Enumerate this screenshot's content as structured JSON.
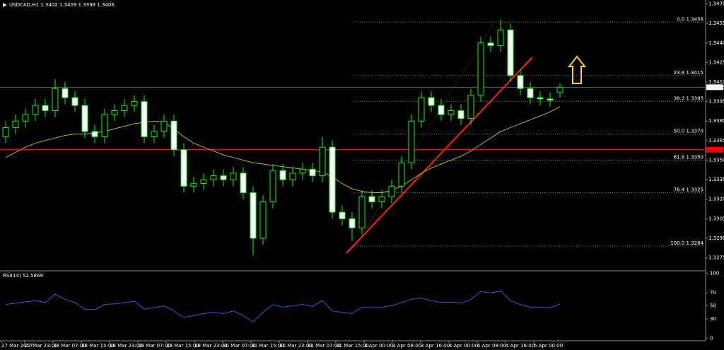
{
  "chart_data": {
    "type": "candlestick",
    "title": "USDCAD,H1 1.3402 1.3409 1.3398 1.3406",
    "open": [
      1.3368,
      1.3375,
      1.338,
      1.3385,
      1.3392,
      1.3388,
      1.3405,
      1.3398,
      1.3392,
      1.3372,
      1.3368,
      1.3385,
      1.3388,
      1.3392,
      1.3395,
      1.3368,
      1.3372,
      1.338,
      1.3358,
      1.333,
      1.3332,
      1.3335,
      1.3338,
      1.3335,
      1.334,
      1.3325,
      1.329,
      1.3318,
      1.3342,
      1.3335,
      1.334,
      1.3343,
      1.3338,
      1.336,
      1.331,
      1.3305,
      1.3298,
      1.3322,
      1.3318,
      1.3322,
      1.333,
      1.3348,
      1.338,
      1.3398,
      1.3392,
      1.3385,
      1.3388,
      1.3382,
      1.34,
      1.344,
      1.3438,
      1.345,
      1.3415,
      1.3405,
      1.3398,
      1.3397,
      1.3402
    ],
    "high": [
      1.338,
      1.3385,
      1.339,
      1.3397,
      1.3397,
      1.3412,
      1.341,
      1.3403,
      1.3397,
      1.3377,
      1.339,
      1.3393,
      1.3397,
      1.34,
      1.34,
      1.3377,
      1.3385,
      1.3385,
      1.3363,
      1.3337,
      1.334,
      1.3343,
      1.3343,
      1.3345,
      1.3345,
      1.333,
      1.3323,
      1.3347,
      1.3347,
      1.3345,
      1.3348,
      1.3348,
      1.3368,
      1.3365,
      1.3315,
      1.331,
      1.3327,
      1.3327,
      1.3327,
      1.3335,
      1.3353,
      1.3385,
      1.3403,
      1.3403,
      1.3397,
      1.3393,
      1.3393,
      1.3405,
      1.3445,
      1.3445,
      1.3458,
      1.3455,
      1.342,
      1.341,
      1.3403,
      1.3402,
      1.3409
    ],
    "low": [
      1.3363,
      1.337,
      1.3375,
      1.338,
      1.3383,
      1.3383,
      1.3393,
      1.3387,
      1.3367,
      1.3363,
      1.3363,
      1.338,
      1.3383,
      1.3387,
      1.3363,
      1.3363,
      1.3367,
      1.3353,
      1.3325,
      1.3325,
      1.3327,
      1.333,
      1.333,
      1.333,
      1.332,
      1.3277,
      1.3285,
      1.3313,
      1.333,
      1.333,
      1.3335,
      1.3333,
      1.3333,
      1.3305,
      1.33,
      1.3288,
      1.3293,
      1.3313,
      1.3313,
      1.3317,
      1.3325,
      1.3343,
      1.3375,
      1.3387,
      1.338,
      1.338,
      1.3377,
      1.3377,
      1.3395,
      1.3433,
      1.3433,
      1.341,
      1.34,
      1.3393,
      1.3392,
      1.3391,
      1.3398
    ],
    "close": [
      1.3375,
      1.338,
      1.3385,
      1.3392,
      1.3388,
      1.3405,
      1.3398,
      1.3392,
      1.3372,
      1.3368,
      1.3385,
      1.3388,
      1.3392,
      1.3395,
      1.3368,
      1.3372,
      1.338,
      1.3358,
      1.333,
      1.3332,
      1.3335,
      1.3338,
      1.3335,
      1.334,
      1.3325,
      1.329,
      1.3318,
      1.3342,
      1.3335,
      1.334,
      1.3343,
      1.3338,
      1.336,
      1.331,
      1.3305,
      1.3298,
      1.3322,
      1.3318,
      1.3322,
      1.333,
      1.3348,
      1.338,
      1.3398,
      1.3392,
      1.3385,
      1.3388,
      1.3382,
      1.34,
      1.344,
      1.3438,
      1.345,
      1.3415,
      1.3405,
      1.3398,
      1.3397,
      1.3396,
      1.3406
    ],
    "up_color": "#000000",
    "down_color": "#ffffff",
    "wick_color": "#00ff00",
    "ma": {
      "color": "#c8b400",
      "values": [
        1.3352,
        1.3356,
        1.336,
        1.3363,
        1.3365,
        1.3367,
        1.3369,
        1.337,
        1.337,
        1.3371,
        1.3372,
        1.3374,
        1.3376,
        1.3378,
        1.3379,
        1.338,
        1.3379,
        1.3374,
        1.3368,
        1.3363,
        1.336,
        1.3357,
        1.3354,
        1.3352,
        1.335,
        1.3348,
        1.3347,
        1.3346,
        1.3345,
        1.3344,
        1.3343,
        1.3342,
        1.3341,
        1.3337,
        1.3332,
        1.3328,
        1.3326,
        1.3325,
        1.3325,
        1.3327,
        1.333,
        1.3335,
        1.334,
        1.3344,
        1.3347,
        1.335,
        1.3353,
        1.3357,
        1.3362,
        1.3367,
        1.3372,
        1.3375,
        1.3378,
        1.3381,
        1.3384,
        1.3387,
        1.3391
      ]
    },
    "ylim": [
      1.3265,
      1.3473
    ],
    "yticks": [
      {
        "value": 1.347,
        "label": "1.3470"
      },
      {
        "value": 1.3455,
        "label": "1.3455"
      },
      {
        "value": 1.344,
        "label": "1.3440"
      },
      {
        "value": 1.3425,
        "label": "1.3425"
      },
      {
        "value": 1.341,
        "label": "1.3410"
      },
      {
        "value": 1.3395,
        "label": "1.3395"
      },
      {
        "value": 1.338,
        "label": "1.3380"
      },
      {
        "value": 1.3365,
        "label": "1.3365"
      },
      {
        "value": 1.335,
        "label": "1.3350"
      },
      {
        "value": 1.3335,
        "label": "1.3335"
      },
      {
        "value": 1.332,
        "label": "1.3320"
      },
      {
        "value": 1.3305,
        "label": "1.3305"
      },
      {
        "value": 1.329,
        "label": "1.3290"
      },
      {
        "value": 1.3275,
        "label": "1.3275"
      }
    ],
    "fib_levels": [
      {
        "value": 1.3456,
        "label": "0.0 1.3456"
      },
      {
        "value": 1.3415,
        "label": "23.6 1.3415"
      },
      {
        "value": 1.3395,
        "label": "38.2 1.3395"
      },
      {
        "value": 1.337,
        "label": "50.0 1.3370"
      },
      {
        "value": 1.335,
        "label": "61.8 1.3350"
      },
      {
        "value": 1.3325,
        "label": "76.4 1.3325"
      },
      {
        "value": 1.3284,
        "label": "100.0 1.3284"
      }
    ],
    "level_line": {
      "value": 1.3358,
      "color": "#ff0000"
    },
    "price_line": {
      "value": 1.3406,
      "label": "1.3406"
    },
    "rsi": {
      "title": "RSI(14) 52.5869",
      "color": "#2f5fd0",
      "values": [
        52,
        54,
        56,
        58,
        55,
        68,
        60,
        55,
        45,
        44,
        52,
        53,
        55,
        57,
        45,
        47,
        50,
        42,
        32,
        35,
        38,
        40,
        38,
        42,
        35,
        25,
        40,
        52,
        48,
        50,
        52,
        49,
        58,
        42,
        40,
        38,
        48,
        47,
        48,
        50,
        55,
        60,
        62,
        58,
        55,
        56,
        54,
        60,
        72,
        70,
        73,
        58,
        52,
        48,
        48,
        47,
        52.5869
      ],
      "ylim": [
        -3,
        103
      ],
      "yticks": [
        100,
        70,
        50,
        30,
        0
      ]
    },
    "x_labels": [
      "27 Mar 2017",
      "27 Mar 23:00",
      "28 Mar 07:00",
      "28 Mar 15:00",
      "28 Mar 23:00",
      "29 Mar 07:00",
      "29 Mar 15:00",
      "29 Mar 23:00",
      "30 Mar 07:00",
      "30 Mar 15:00",
      "30 Mar 23:00",
      "31 Mar 07:00",
      "31 Mar 15:00",
      "3 Apr 00:00",
      "3 Apr 08:00",
      "3 Apr 16:00",
      "4 Apr 00:00",
      "4 Apr 08:00",
      "4 Apr 16:00",
      "5 Apr 00:00"
    ]
  }
}
